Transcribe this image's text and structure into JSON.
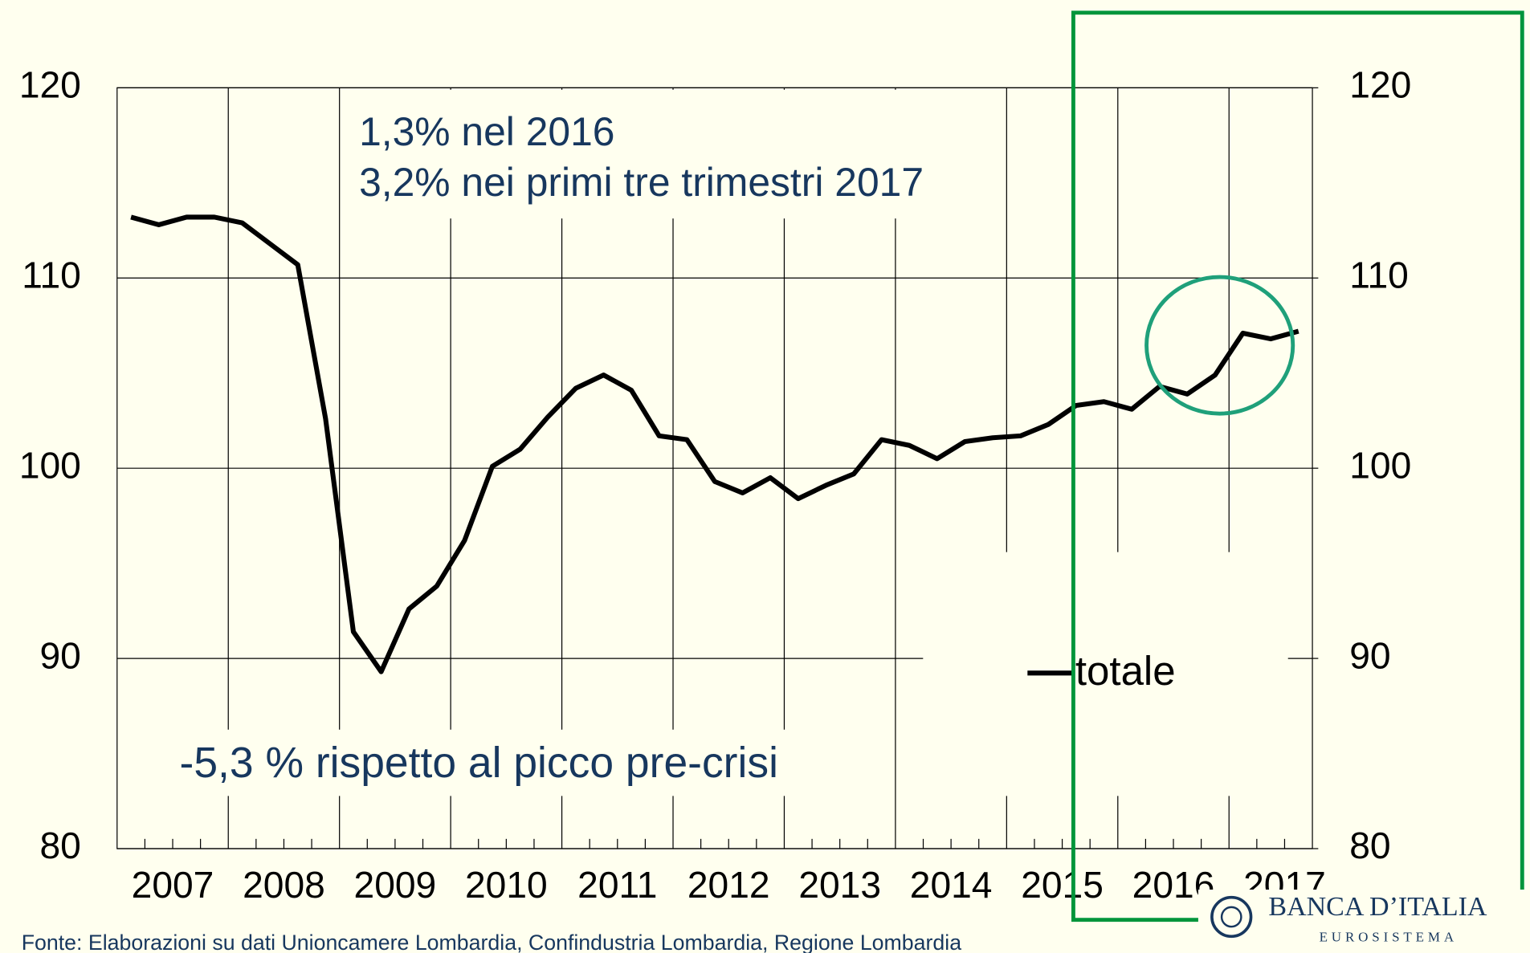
{
  "chart_data": {
    "type": "line",
    "categories": [
      "2007",
      null,
      null,
      null,
      "2008",
      null,
      null,
      null,
      "2009",
      null,
      null,
      null,
      "2010",
      null,
      null,
      null,
      "2011",
      null,
      null,
      null,
      "2012",
      null,
      null,
      null,
      "2013",
      null,
      null,
      null,
      "2014",
      null,
      null,
      null,
      "2015",
      null,
      null,
      null,
      "2016",
      null,
      null,
      null,
      "2017",
      null,
      null
    ],
    "series": [
      {
        "name": "totale",
        "color": "#000000",
        "values": [
          113.2,
          112.8,
          113.2,
          113.2,
          112.9,
          111.8,
          110.7,
          102.6,
          91.4,
          89.3,
          92.6,
          93.8,
          96.2,
          100.1,
          101.0,
          102.7,
          104.2,
          104.9,
          104.1,
          101.7,
          101.5,
          99.3,
          98.7,
          99.5,
          98.4,
          99.1,
          99.7,
          101.5,
          101.2,
          100.5,
          101.4,
          101.6,
          101.7,
          102.3,
          103.3,
          103.5,
          103.1,
          104.3,
          103.9,
          104.9,
          107.1,
          106.8,
          107.2
        ]
      }
    ],
    "ylim": [
      80,
      120
    ],
    "yticks": [
      80,
      90,
      100,
      110,
      120
    ],
    "y2lim": [
      80,
      120
    ],
    "y2ticks": [
      80,
      90,
      100,
      110,
      120
    ],
    "grid": true,
    "annotations": [
      "1,3% nel 2016",
      "3,2% nei primi tre trimestri 2017",
      "-5,3 % rispetto al picco pre-crisi"
    ],
    "source": "Fonte: Elaborazioni su dati Unioncamere Lombardia, Confindustria Lombardia, Regione Lombardia",
    "logo": {
      "name": "BANCA D’ITALIA",
      "subtitle": "EUROSISTEMA"
    }
  }
}
